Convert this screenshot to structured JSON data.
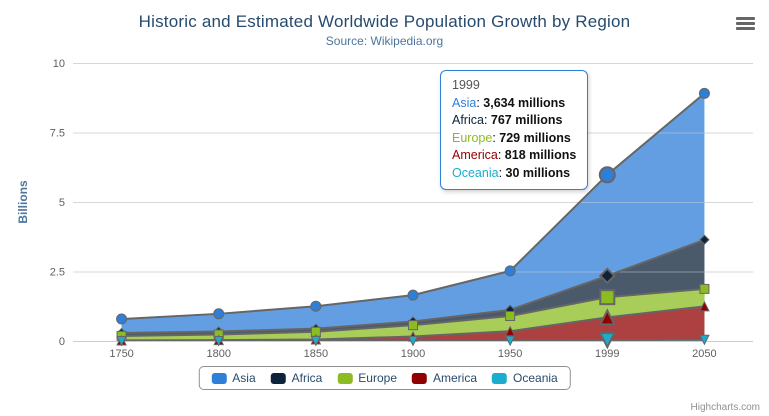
{
  "header": {
    "title": "Historic and Estimated Worldwide Population Growth by Region",
    "subtitle": "Source: Wikipedia.org"
  },
  "icons": {
    "export_menu": "hamburger-icon"
  },
  "colors": {
    "title": "#274b6d",
    "subtitle": "#4d759e",
    "axis_label": "#606060",
    "axis_title": "#4d759e",
    "grid": "#d8d8d8",
    "axis_line": "#c0d0e0",
    "series_outline": "#666666",
    "legend_text": "#274b6d",
    "tooltip_border": "#2f7ed8"
  },
  "chart_data": {
    "type": "area",
    "stacking": "normal",
    "title": "Historic and Estimated Worldwide Population Growth by Region",
    "subtitle": "Source: Wikipedia.org",
    "categories": [
      "1750",
      "1800",
      "1850",
      "1900",
      "1950",
      "1999",
      "2050"
    ],
    "series": [
      {
        "name": "Asia",
        "color": "#2f7ed8",
        "marker": "circle",
        "values_millions": [
          502,
          635,
          809,
          947,
          1402,
          3634,
          5268
        ]
      },
      {
        "name": "Africa",
        "color": "#0d233a",
        "marker": "diamond",
        "values_millions": [
          106,
          107,
          111,
          133,
          221,
          767,
          1766
        ]
      },
      {
        "name": "Europe",
        "color": "#8bbc21",
        "marker": "square",
        "values_millions": [
          163,
          203,
          276,
          408,
          547,
          729,
          628
        ]
      },
      {
        "name": "America",
        "color": "#910000",
        "marker": "triangle",
        "values_millions": [
          18,
          31,
          54,
          156,
          339,
          818,
          1201
        ]
      },
      {
        "name": "Oceania",
        "color": "#1aadce",
        "marker": "triangle-down",
        "values_millions": [
          2,
          2,
          2,
          6,
          13,
          30,
          46
        ]
      }
    ],
    "unit": "millions",
    "xlabel": "",
    "ylabel": "Billions",
    "ylim": [
      0,
      10
    ],
    "yticks": [
      0,
      2.5,
      5,
      7.5,
      10
    ],
    "grid": "horizontal",
    "legend_position": "bottom",
    "hovered_category": "1999"
  },
  "tooltip": {
    "category": "1999",
    "rows": [
      {
        "name": "Asia",
        "value": "3,634 millions"
      },
      {
        "name": "Africa",
        "value": "767 millions"
      },
      {
        "name": "Europe",
        "value": "729 millions"
      },
      {
        "name": "America",
        "value": "818 millions"
      },
      {
        "name": "Oceania",
        "value": "30 millions"
      }
    ]
  },
  "legend": {
    "items": [
      "Asia",
      "Africa",
      "Europe",
      "America",
      "Oceania"
    ]
  },
  "credits": {
    "label": "Highcharts.com"
  }
}
